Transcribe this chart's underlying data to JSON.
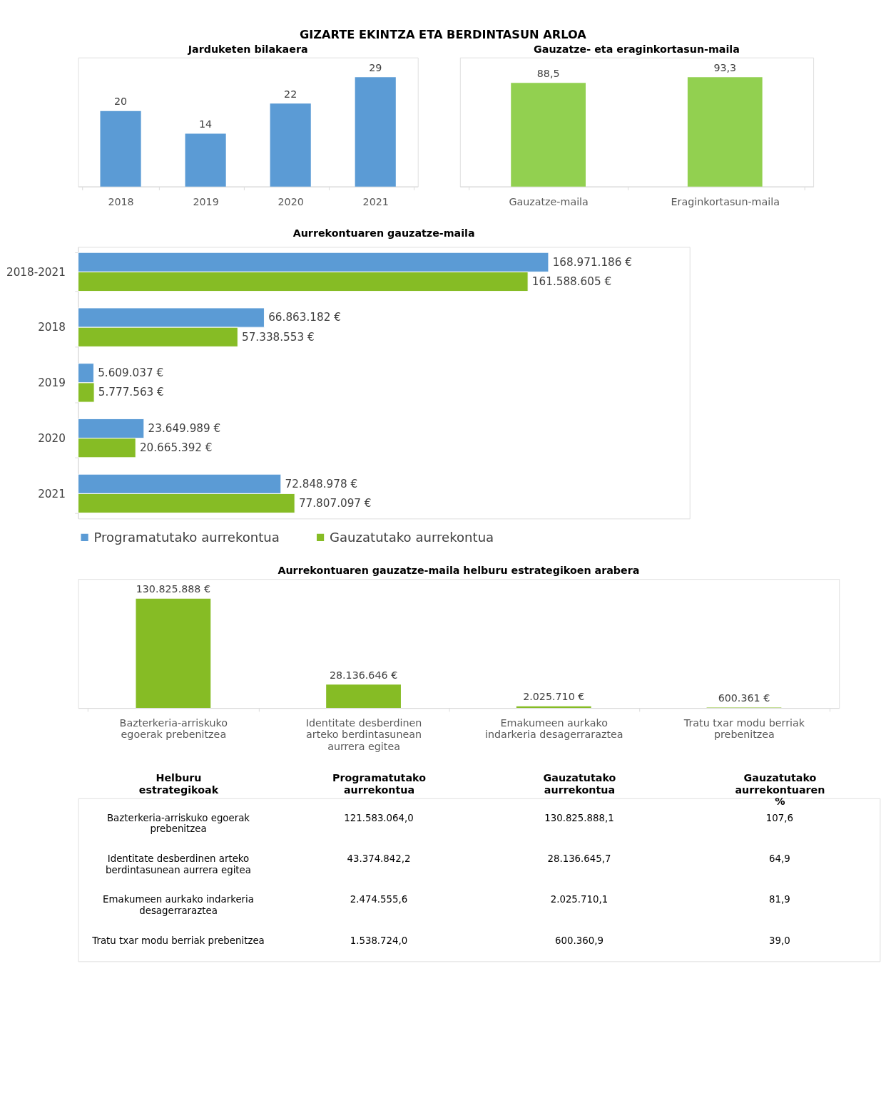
{
  "chart_data": [
    {
      "type": "bar",
      "title": "GIZARTE EKINTZA ETA BERDINTASUN ARLOA",
      "subtitle": "Jarduketen bilakaera",
      "categories": [
        "2018",
        "2019",
        "2020",
        "2021"
      ],
      "values": [
        20,
        14,
        22,
        29
      ],
      "color": "#5b9bd5",
      "data_labels": true
    },
    {
      "type": "bar",
      "title": "Gauzatze- eta eraginkortasun-maila",
      "categories": [
        "Gauzatze-maila",
        "Eraginkortasun-maila"
      ],
      "values": [
        88.5,
        93.3
      ],
      "value_labels": [
        "88,5",
        "93,3"
      ],
      "color": "#92d050"
    },
    {
      "type": "bar",
      "title": "Aurrekontuaren gauzatze-maila",
      "orientation": "horizontal",
      "legend": "bottom",
      "categories": [
        "2018-2021",
        "2018",
        "2019",
        "2020",
        "2021"
      ],
      "series": [
        {
          "name": "Programatutako aurrekontua",
          "color": "#5b9bd5",
          "values": [
            168971186,
            66863182,
            5609037,
            23649989,
            72848978
          ],
          "value_labels": [
            "168.971.186 €",
            "66.863.182 €",
            "5.609.037 €",
            "23.649.989 €",
            "72.848.978 €"
          ]
        },
        {
          "name": "Gauzatutako aurrekontua",
          "color": "#86bc25",
          "values": [
            161588605,
            57338553,
            5777563,
            20665392,
            77807097
          ],
          "value_labels": [
            "161.588.605 €",
            "57.338.553 €",
            "5.777.563 €",
            "20.665.392 €",
            "77.807.097 €"
          ]
        }
      ]
    },
    {
      "type": "bar",
      "title": "Aurrekontuaren gauzatze-maila helburu estrategikoen arabera",
      "categories": [
        "Bazterkeria-arriskuko egoerak prebenitzea",
        "Identitate desberdinen arteko berdintasunean aurrera egitea",
        "Emakumeen aurkako indarkeria desagerraraztea",
        "Tratu txar modu berriak prebenitzea"
      ],
      "values": [
        130825888,
        28136646,
        2025710,
        600361
      ],
      "value_labels": [
        "130.825.888 €",
        "28.136.646 €",
        "2.025.710 €",
        "600.361 €"
      ],
      "color": "#86bc25"
    },
    {
      "type": "other",
      "ylabel": "Helburu estrategikoak",
      "categories": [
        "Bazterkeria-arriskuko egoerak prebenitzea",
        "Identitate desberdinen arteko berdintasunean aurrera egitea",
        "Emakumeen aurkako indarkeria desagerraraztea",
        "Tratu txar modu berriak prebenitzea"
      ],
      "series": [
        {
          "name": "Programatutako aurrekontua",
          "values": [
            121583064.0,
            43374842.2,
            2474555.6,
            1538724.0
          ],
          "value_labels": [
            "121.583.064,0",
            "43.374.842,2",
            "2.474.555,6",
            "1.538.724,0"
          ]
        },
        {
          "name": "Gauzatutako aurrekontua",
          "values": [
            130825888.1,
            28136645.7,
            2025710.1,
            600360.9
          ],
          "value_labels": [
            "130.825.888,1",
            "28.136.645,7",
            "2.025.710,1",
            "600.360,9"
          ]
        },
        {
          "name": "Gauzatutako aurrekontuaren %",
          "values": [
            107.6,
            64.9,
            81.9,
            39.0
          ],
          "value_labels": [
            "107,6",
            "64,9",
            "81,9",
            "39,0"
          ]
        }
      ]
    }
  ]
}
